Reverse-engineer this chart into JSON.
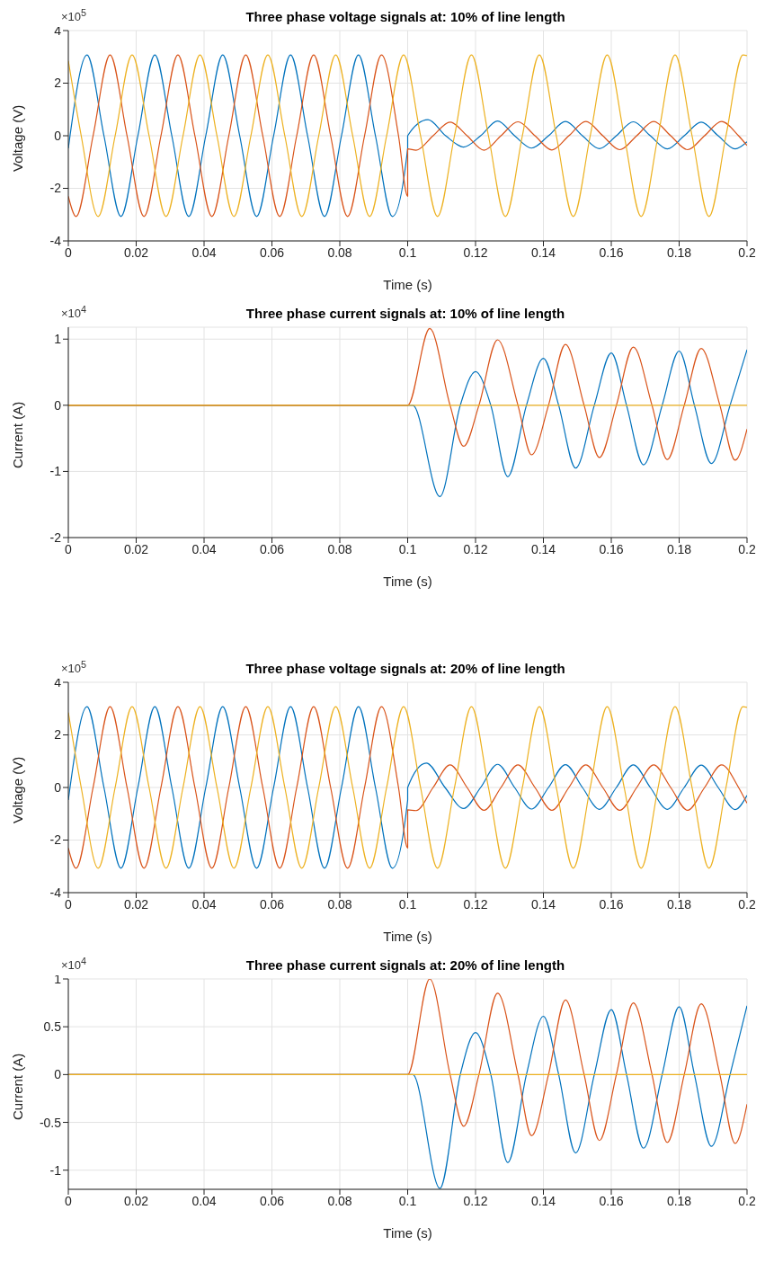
{
  "chart_data": [
    {
      "type": "line",
      "title": "Three phase voltage signals at: 10% of line length",
      "xlabel": "Time (s)",
      "ylabel": "Voltage (V)",
      "annotations": [
        "×10$^{5}$"
      ],
      "grid": true,
      "xlim": [
        0,
        0.2
      ],
      "xticks": [
        0,
        0.02,
        0.04,
        0.06,
        0.08,
        0.1,
        0.12,
        0.14,
        0.16,
        0.18,
        0.2
      ],
      "ylim": [
        -4,
        4
      ],
      "yticks": [
        -4,
        -2,
        0,
        2,
        4
      ],
      "series": [
        {
          "color": "#0072bd",
          "x": [
            0,
            0.0005,
            0.0055,
            0.0105,
            0.0155,
            0.0205,
            0.0255,
            0.0305,
            0.0355,
            0.0405,
            0.0455,
            0.0505,
            0.0555,
            0.0605,
            0.0655,
            0.0705,
            0.0755,
            0.0805,
            0.0855,
            0.0905,
            0.0955,
            0.1,
            0.1,
            0.106,
            0.1112,
            0.1165,
            0.1215,
            0.1265,
            0.1315,
            0.1365,
            0.1415,
            0.1465,
            0.1515,
            0.1565,
            0.1615,
            0.1665,
            0.1715,
            0.1765,
            0.1815,
            0.1865,
            0.1915,
            0.1965,
            0.2
          ],
          "values": [
            -0.48,
            0,
            3.07,
            0,
            -3.07,
            0,
            3.07,
            0,
            -3.07,
            0,
            3.07,
            0,
            -3.07,
            0,
            3.07,
            0,
            -3.07,
            0,
            3.07,
            0,
            -3.07,
            -0.48,
            0,
            0.61,
            0,
            -0.43,
            0,
            0.56,
            0,
            -0.47,
            0,
            0.54,
            0,
            -0.49,
            0,
            0.53,
            0,
            -0.5,
            0,
            0.52,
            0,
            -0.5,
            -0.23
          ]
        },
        {
          "color": "#d95319",
          "x": [
            0,
            0.0023,
            0.0073,
            0.0123,
            0.0173,
            0.0223,
            0.0273,
            0.0323,
            0.0373,
            0.0423,
            0.0473,
            0.0523,
            0.0573,
            0.0623,
            0.0673,
            0.0723,
            0.0773,
            0.0823,
            0.0873,
            0.0923,
            0.0973,
            0.1,
            0.1,
            0.1025,
            0.1075,
            0.1125,
            0.1175,
            0.1225,
            0.1275,
            0.1325,
            0.1375,
            0.1425,
            0.1475,
            0.1525,
            0.1575,
            0.1625,
            0.1675,
            0.1725,
            0.1775,
            0.1825,
            0.1875,
            0.1925,
            0.1975,
            0.2
          ],
          "values": [
            -2.3,
            -3.07,
            0,
            3.07,
            0,
            -3.07,
            0,
            3.07,
            0,
            -3.07,
            0,
            3.07,
            0,
            -3.07,
            0,
            3.07,
            0,
            -3.07,
            0,
            3.07,
            0,
            -2.3,
            -0.5,
            -0.55,
            0,
            0.52,
            0,
            -0.55,
            0,
            0.53,
            0,
            -0.54,
            0,
            0.54,
            0,
            -0.53,
            0,
            0.54,
            0,
            -0.53,
            0,
            0.54,
            0,
            -0.37
          ]
        },
        {
          "color": "#edb120",
          "x": [
            0,
            0.0038,
            0.0088,
            0.0138,
            0.0188,
            0.0238,
            0.0288,
            0.0338,
            0.0388,
            0.0438,
            0.0488,
            0.0538,
            0.0588,
            0.0638,
            0.0688,
            0.0738,
            0.0788,
            0.0838,
            0.0888,
            0.0938,
            0.0988,
            0.1038,
            0.1088,
            0.1138,
            0.1188,
            0.1238,
            0.1288,
            0.1338,
            0.1388,
            0.1438,
            0.1488,
            0.1538,
            0.1588,
            0.1638,
            0.1688,
            0.1738,
            0.1788,
            0.1838,
            0.1888,
            0.1938,
            0.1988,
            0.2
          ],
          "values": [
            2.85,
            0,
            -3.07,
            0,
            3.07,
            0,
            -3.07,
            0,
            3.07,
            0,
            -3.07,
            0,
            3.07,
            0,
            -3.07,
            0,
            3.07,
            0,
            -3.07,
            0,
            3.07,
            0,
            -3.07,
            0,
            3.07,
            0,
            -3.07,
            0,
            3.07,
            0,
            -3.07,
            0,
            3.07,
            0,
            -3.07,
            0,
            3.07,
            0,
            -3.07,
            0,
            3.07,
            3.05
          ]
        }
      ]
    },
    {
      "type": "line",
      "title": "Three phase current signals at: 10% of line length",
      "xlabel": "Time (s)",
      "ylabel": "Current (A)",
      "annotations": [
        "×10$^{4}$"
      ],
      "grid": true,
      "xlim": [
        0,
        0.2
      ],
      "xticks": [
        0,
        0.02,
        0.04,
        0.06,
        0.08,
        0.1,
        0.12,
        0.14,
        0.16,
        0.18,
        0.2
      ],
      "ylim": [
        -2,
        1.18
      ],
      "yticks": [
        -2,
        -1,
        0,
        1
      ],
      "series": [
        {
          "color": "#0072bd",
          "x": [
            0,
            0.1,
            0.1015,
            0.1095,
            0.1155,
            0.12,
            0.1245,
            0.1295,
            0.135,
            0.14,
            0.1445,
            0.1495,
            0.155,
            0.16,
            0.1645,
            0.1695,
            0.175,
            0.18,
            0.1845,
            0.1895,
            0.195,
            0.2
          ],
          "values": [
            0,
            0,
            0,
            -1.38,
            0,
            0.51,
            0,
            -1.08,
            0,
            0.71,
            0,
            -0.95,
            0,
            0.79,
            0,
            -0.9,
            0,
            0.82,
            0,
            -0.88,
            0,
            0.84
          ]
        },
        {
          "color": "#d95319",
          "x": [
            0,
            0.1,
            0.1065,
            0.1125,
            0.1165,
            0.121,
            0.1265,
            0.1325,
            0.1365,
            0.1415,
            0.1465,
            0.152,
            0.1565,
            0.1615,
            0.1665,
            0.172,
            0.1765,
            0.1815,
            0.1865,
            0.192,
            0.1965,
            0.2
          ],
          "values": [
            0,
            0,
            1.16,
            0,
            -0.62,
            0,
            0.99,
            0,
            -0.75,
            0,
            0.92,
            0,
            -0.79,
            0,
            0.88,
            0,
            -0.82,
            0,
            0.86,
            0,
            -0.83,
            -0.36
          ]
        },
        {
          "color": "#edb120",
          "x": [
            0,
            0.2
          ],
          "values": [
            0,
            0
          ]
        }
      ]
    },
    {
      "type": "line",
      "title": "Three phase voltage signals at: 20% of line length",
      "xlabel": "Time (s)",
      "ylabel": "Voltage (V)",
      "annotations": [
        "×10$^{5}$"
      ],
      "grid": true,
      "xlim": [
        0,
        0.2
      ],
      "xticks": [
        0,
        0.02,
        0.04,
        0.06,
        0.08,
        0.1,
        0.12,
        0.14,
        0.16,
        0.18,
        0.2
      ],
      "ylim": [
        -4,
        4
      ],
      "yticks": [
        -4,
        -2,
        0,
        2,
        4
      ],
      "series": [
        {
          "color": "#0072bd",
          "x": [
            0,
            0.0005,
            0.0055,
            0.0105,
            0.0155,
            0.0205,
            0.0255,
            0.0305,
            0.0355,
            0.0405,
            0.0455,
            0.0505,
            0.0555,
            0.0605,
            0.0655,
            0.0705,
            0.0755,
            0.0805,
            0.0855,
            0.0905,
            0.0955,
            0.1,
            0.1,
            0.1055,
            0.111,
            0.1165,
            0.1215,
            0.1265,
            0.1315,
            0.1365,
            0.1415,
            0.1465,
            0.1515,
            0.1565,
            0.1615,
            0.1665,
            0.1715,
            0.1765,
            0.1815,
            0.1865,
            0.1915,
            0.1965,
            0.2
          ],
          "values": [
            -0.48,
            0,
            3.07,
            0,
            -3.07,
            0,
            3.07,
            0,
            -3.07,
            0,
            3.07,
            0,
            -3.07,
            0,
            3.07,
            0,
            -3.07,
            0,
            3.07,
            0,
            -3.07,
            -0.48,
            0,
            0.93,
            0,
            -0.8,
            0,
            0.88,
            0,
            -0.82,
            0,
            0.87,
            0,
            -0.83,
            0,
            0.86,
            0,
            -0.83,
            0,
            0.85,
            0,
            -0.84,
            -0.3
          ]
        },
        {
          "color": "#d95319",
          "x": [
            0,
            0.0023,
            0.0073,
            0.0123,
            0.0173,
            0.0223,
            0.0273,
            0.0323,
            0.0373,
            0.0423,
            0.0473,
            0.0523,
            0.0573,
            0.0623,
            0.0673,
            0.0723,
            0.0773,
            0.0823,
            0.0873,
            0.0923,
            0.0973,
            0.1,
            0.1,
            0.1025,
            0.1075,
            0.1125,
            0.1175,
            0.1225,
            0.1275,
            0.1325,
            0.1375,
            0.1425,
            0.1475,
            0.1525,
            0.1575,
            0.1625,
            0.1675,
            0.1725,
            0.1775,
            0.1825,
            0.1875,
            0.1925,
            0.1975,
            0.2
          ],
          "values": [
            -2.3,
            -3.07,
            0,
            3.07,
            0,
            -3.07,
            0,
            3.07,
            0,
            -3.07,
            0,
            3.07,
            0,
            -3.07,
            0,
            3.07,
            0,
            -3.07,
            0,
            3.07,
            0,
            -2.3,
            -0.85,
            -0.88,
            0,
            0.86,
            0,
            -0.87,
            0,
            0.86,
            0,
            -0.87,
            0,
            0.86,
            0,
            -0.87,
            0,
            0.86,
            0,
            -0.87,
            0,
            0.86,
            0,
            -0.6
          ]
        },
        {
          "color": "#edb120",
          "x": [
            0,
            0.0038,
            0.0088,
            0.0138,
            0.0188,
            0.0238,
            0.0288,
            0.0338,
            0.0388,
            0.0438,
            0.0488,
            0.0538,
            0.0588,
            0.0638,
            0.0688,
            0.0738,
            0.0788,
            0.0838,
            0.0888,
            0.0938,
            0.0988,
            0.1038,
            0.1088,
            0.1138,
            0.1188,
            0.1238,
            0.1288,
            0.1338,
            0.1388,
            0.1438,
            0.1488,
            0.1538,
            0.1588,
            0.1638,
            0.1688,
            0.1738,
            0.1788,
            0.1838,
            0.1888,
            0.1938,
            0.1988,
            0.2
          ],
          "values": [
            2.85,
            0,
            -3.07,
            0,
            3.07,
            0,
            -3.07,
            0,
            3.07,
            0,
            -3.07,
            0,
            3.07,
            0,
            -3.07,
            0,
            3.07,
            0,
            -3.07,
            0,
            3.07,
            0,
            -3.07,
            0,
            3.07,
            0,
            -3.07,
            0,
            3.07,
            0,
            -3.07,
            0,
            3.07,
            0,
            -3.07,
            0,
            3.07,
            0,
            -3.07,
            0,
            3.07,
            3.05
          ]
        }
      ]
    },
    {
      "type": "line",
      "title": "Three phase current signals at: 20% of line length",
      "xlabel": "Time (s)",
      "ylabel": "Current (A)",
      "annotations": [
        "×10$^{4}$"
      ],
      "grid": true,
      "xlim": [
        0,
        0.2
      ],
      "xticks": [
        0,
        0.02,
        0.04,
        0.06,
        0.08,
        0.1,
        0.12,
        0.14,
        0.16,
        0.18,
        0.2
      ],
      "ylim": [
        -1.2,
        1
      ],
      "yticks": [
        -1,
        -0.5,
        0,
        0.5,
        1
      ],
      "series": [
        {
          "color": "#0072bd",
          "x": [
            0,
            0.1,
            0.1015,
            0.1095,
            0.1155,
            0.12,
            0.1245,
            0.1295,
            0.135,
            0.14,
            0.1445,
            0.1495,
            0.155,
            0.16,
            0.1645,
            0.1695,
            0.175,
            0.18,
            0.1845,
            0.1895,
            0.195,
            0.2
          ],
          "values": [
            0,
            0,
            0,
            -1.19,
            0,
            0.44,
            0,
            -0.92,
            0,
            0.61,
            0,
            -0.82,
            0,
            0.68,
            0,
            -0.77,
            0,
            0.71,
            0,
            -0.75,
            0,
            0.72
          ]
        },
        {
          "color": "#d95319",
          "x": [
            0,
            0.1,
            0.1065,
            0.1125,
            0.1165,
            0.121,
            0.1265,
            0.1325,
            0.1365,
            0.1415,
            0.1465,
            0.152,
            0.1565,
            0.1615,
            0.1665,
            0.172,
            0.1765,
            0.1815,
            0.1865,
            0.192,
            0.1965,
            0.2
          ],
          "values": [
            0,
            0,
            1,
            0,
            -0.54,
            0,
            0.85,
            0,
            -0.64,
            0,
            0.78,
            0,
            -0.69,
            0,
            0.75,
            0,
            -0.71,
            0,
            0.74,
            0,
            -0.72,
            -0.31
          ]
        },
        {
          "color": "#edb120",
          "x": [
            0,
            0.2
          ],
          "values": [
            0,
            0
          ]
        }
      ]
    }
  ]
}
